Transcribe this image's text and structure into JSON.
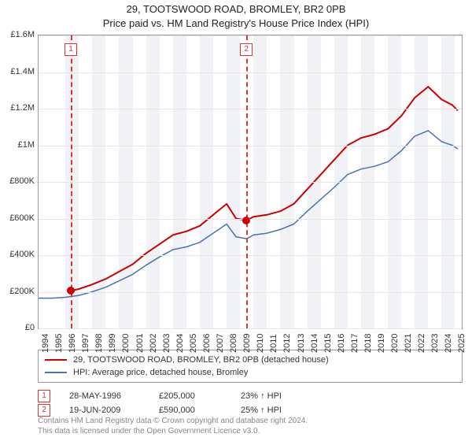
{
  "title": "29, TOOTSWOOD ROAD, BROMLEY, BR2 0PB",
  "subtitle": "Price paid vs. HM Land Registry's House Price Index (HPI)",
  "chart": {
    "type": "line",
    "background_color": "#ffffff",
    "grid_color": "#e6e6e6",
    "band_color": "#f0f2f5",
    "border_color": "#999999",
    "xmin": 1994,
    "xmax": 2025.5,
    "x_ticks": [
      1994,
      1995,
      1996,
      1997,
      1998,
      1999,
      2000,
      2001,
      2002,
      2003,
      2004,
      2005,
      2006,
      2007,
      2008,
      2009,
      2010,
      2011,
      2012,
      2013,
      2014,
      2015,
      2016,
      2017,
      2018,
      2019,
      2020,
      2021,
      2022,
      2023,
      2024,
      2025
    ],
    "x_tick_labels": [
      "1994",
      "1995",
      "1996",
      "1997",
      "1998",
      "1999",
      "2000",
      "2001",
      "2002",
      "2003",
      "2004",
      "2005",
      "2006",
      "2007",
      "2008",
      "2009",
      "2010",
      "2011",
      "2012",
      "2013",
      "2014",
      "2015",
      "2016",
      "2017",
      "2018",
      "2019",
      "2020",
      "2021",
      "2022",
      "2023",
      "2024",
      "2025"
    ],
    "ymin": 0,
    "ymax": 1600000,
    "y_ticks": [
      0,
      200000,
      400000,
      600000,
      800000,
      1000000,
      1200000,
      1400000,
      1600000
    ],
    "y_tick_labels": [
      "£0",
      "£200K",
      "£400K",
      "£600K",
      "£800K",
      "£1M",
      "£1.2M",
      "£1.4M",
      "£1.6M"
    ],
    "tick_fontsize": 11,
    "band_years": [
      1996,
      1998,
      2000,
      2002,
      2004,
      2006,
      2008,
      2010,
      2012,
      2014,
      2016,
      2018,
      2020,
      2022,
      2024
    ],
    "series": [
      {
        "name": "29, TOOTSWOOD ROAD, BROMLEY, BR2 0PB (detached house)",
        "color": "#cc0000",
        "width": 2,
        "points": [
          [
            1996.4,
            205000
          ],
          [
            1997,
            215000
          ],
          [
            1998,
            240000
          ],
          [
            1999,
            270000
          ],
          [
            2000,
            310000
          ],
          [
            2001,
            350000
          ],
          [
            2002,
            410000
          ],
          [
            2003,
            460000
          ],
          [
            2004,
            510000
          ],
          [
            2005,
            530000
          ],
          [
            2006,
            560000
          ],
          [
            2007,
            620000
          ],
          [
            2008,
            680000
          ],
          [
            2008.7,
            600000
          ],
          [
            2009.5,
            590000
          ],
          [
            2010,
            610000
          ],
          [
            2011,
            620000
          ],
          [
            2012,
            640000
          ],
          [
            2013,
            680000
          ],
          [
            2014,
            760000
          ],
          [
            2015,
            840000
          ],
          [
            2016,
            920000
          ],
          [
            2017,
            1000000
          ],
          [
            2018,
            1040000
          ],
          [
            2019,
            1060000
          ],
          [
            2020,
            1090000
          ],
          [
            2021,
            1160000
          ],
          [
            2022,
            1260000
          ],
          [
            2023,
            1320000
          ],
          [
            2024,
            1250000
          ],
          [
            2024.8,
            1220000
          ],
          [
            2025.2,
            1190000
          ]
        ]
      },
      {
        "name": "HPI: Average price, detached house, Bromley",
        "color": "#4a72b0",
        "width": 1.5,
        "points": [
          [
            1994,
            165000
          ],
          [
            1995,
            165000
          ],
          [
            1996,
            170000
          ],
          [
            1997,
            180000
          ],
          [
            1998,
            200000
          ],
          [
            1999,
            225000
          ],
          [
            2000,
            260000
          ],
          [
            2001,
            295000
          ],
          [
            2002,
            345000
          ],
          [
            2003,
            390000
          ],
          [
            2004,
            430000
          ],
          [
            2005,
            445000
          ],
          [
            2006,
            470000
          ],
          [
            2007,
            520000
          ],
          [
            2008,
            570000
          ],
          [
            2008.7,
            500000
          ],
          [
            2009.5,
            490000
          ],
          [
            2010,
            510000
          ],
          [
            2011,
            520000
          ],
          [
            2012,
            540000
          ],
          [
            2013,
            570000
          ],
          [
            2014,
            640000
          ],
          [
            2015,
            705000
          ],
          [
            2016,
            770000
          ],
          [
            2017,
            840000
          ],
          [
            2018,
            870000
          ],
          [
            2019,
            885000
          ],
          [
            2020,
            910000
          ],
          [
            2021,
            970000
          ],
          [
            2022,
            1050000
          ],
          [
            2023,
            1080000
          ],
          [
            2024,
            1020000
          ],
          [
            2024.8,
            1000000
          ],
          [
            2025.2,
            980000
          ]
        ]
      }
    ],
    "sale_markers": [
      {
        "label": "1",
        "year": 1996.4,
        "value": 205000
      },
      {
        "label": "2",
        "year": 2009.47,
        "value": 590000
      }
    ],
    "marker_box_border": "#d33",
    "marker_circle_color": "#cc0000",
    "dash_color": "#d33"
  },
  "legend": {
    "series_labels": [
      "29, TOOTSWOOD ROAD, BROMLEY, BR2 0PB (detached house)",
      "HPI: Average price, detached house, Bromley"
    ],
    "series_colors": [
      "#cc0000",
      "#4a72b0"
    ]
  },
  "sales": [
    {
      "num": "1",
      "date": "28-MAY-1996",
      "price": "£205,000",
      "hpi": "23% ↑ HPI"
    },
    {
      "num": "2",
      "date": "19-JUN-2009",
      "price": "£590,000",
      "hpi": "25% ↑ HPI"
    }
  ],
  "footer_line1": "Contains HM Land Registry data © Crown copyright and database right 2024.",
  "footer_line2": "This data is licensed under the Open Government Licence v3.0."
}
